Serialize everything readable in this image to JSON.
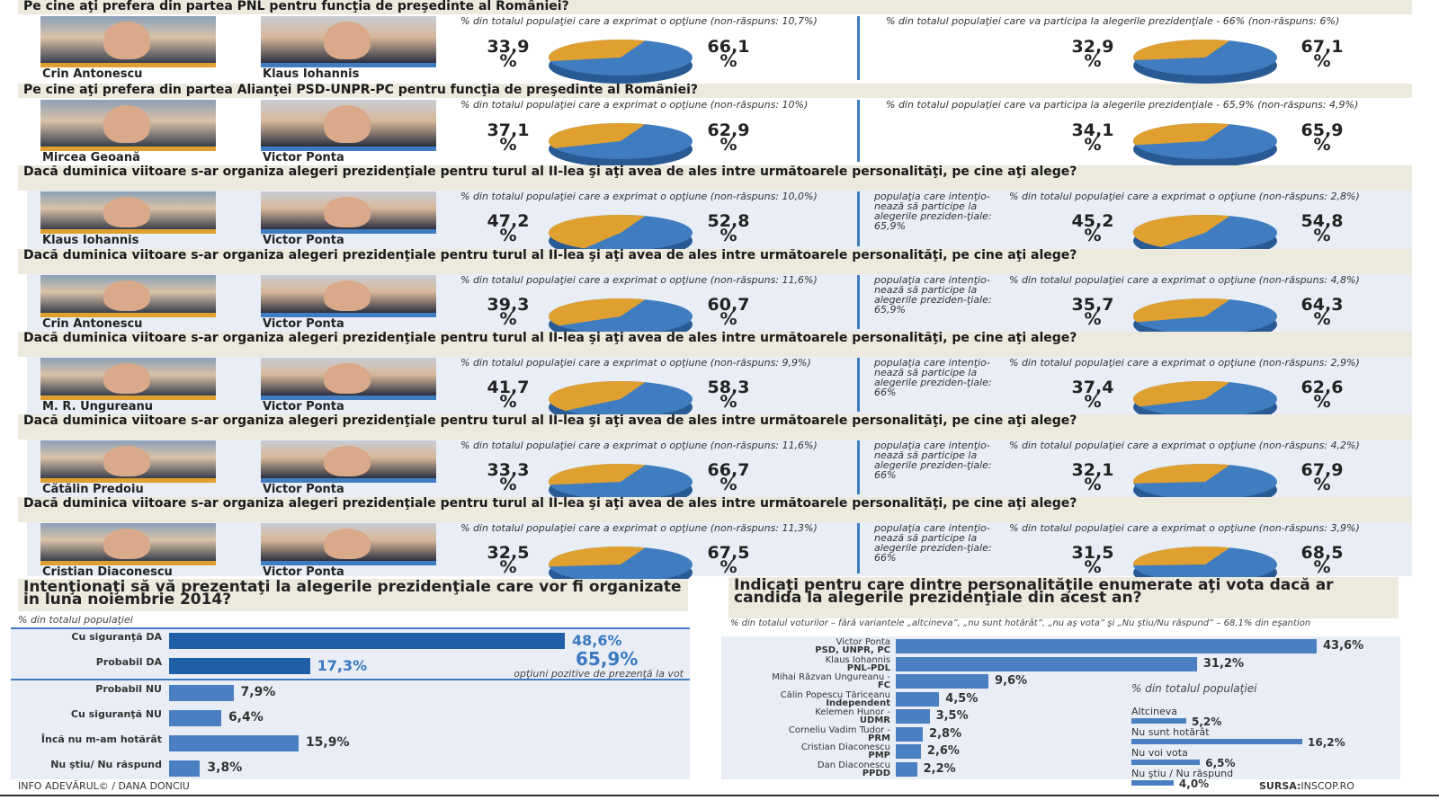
{
  "chart_data": [
    {
      "type": "pie",
      "title": "Pe cine aţi prefera din partea PNL pentru funcţia de preşedinte al României?",
      "candidates": [
        "Crin Antonescu",
        "Klaus Iohannis"
      ],
      "left": {
        "note": "% din totalul populaţiei care a exprimat o opţiune (non-răspuns: 10,7%)",
        "values": [
          33.9,
          66.1
        ]
      },
      "right": {
        "note": "% din totalul populaţiei care va participa la alegerile prezidenţiale - 66% (non-răspuns: 6%)",
        "values": [
          32.9,
          67.1
        ]
      }
    },
    {
      "type": "pie",
      "title": "Pe cine aţi prefera din partea Alianţei PSD-UNPR-PC pentru funcţia de preşedinte al României?",
      "candidates": [
        "Mircea Geoană",
        "Victor Ponta"
      ],
      "left": {
        "note": "% din totalul populaţiei care a exprimat o opţiune (non-răspuns: 10%)",
        "values": [
          37.1,
          62.9
        ]
      },
      "right": {
        "note": "% din totalul populaţiei care va participa la alegerile prezidenţiale - 65,9% (non-răspuns: 4,9%)",
        "values": [
          34.1,
          65.9
        ]
      }
    },
    {
      "type": "pie",
      "title": "Dacă duminica viitoare s-ar organiza alegeri prezidenţiale pentru turul al II-lea şi aţi avea de ales intre următoarele personalităţi, pe cine aţi alege?",
      "candidates": [
        "Klaus Iohannis",
        "Victor Ponta"
      ],
      "left": {
        "note": "% din totalul populaţiei care a exprimat o opţiune (non-răspuns: 10,0%)",
        "values": [
          47.2,
          52.8
        ]
      },
      "side": "populaţia care intenţio-nează să participe la alegerile preziden-ţiale: 65,9%",
      "right": {
        "note": "% din totalul populaţiei care a exprimat o opţiune (non-răspuns: 2,8%)",
        "values": [
          45.2,
          54.8
        ]
      }
    },
    {
      "type": "pie",
      "title": "Dacă duminica viitoare s-ar organiza alegeri prezidenţiale pentru turul al II-lea şi aţi avea de ales intre următoarele personalităţi, pe cine aţi alege?",
      "candidates": [
        "Crin Antonescu",
        "Victor Ponta"
      ],
      "left": {
        "note": "% din totalul populaţiei care a exprimat o opţiune (non-răspuns: 11,6%)",
        "values": [
          39.3,
          60.7
        ]
      },
      "side": "populaţia care intenţio-nează să participe la alegerile preziden-ţiale: 65,9%",
      "right": {
        "note": "% din totalul populaţiei care a exprimat o opţiune (non-răspuns: 4,8%)",
        "values": [
          35.7,
          64.3
        ]
      }
    },
    {
      "type": "pie",
      "title": "Dacă duminica viitoare s-ar organiza alegeri prezidenţiale pentru turul al II-lea şi aţi avea de ales intre următoarele personalităţi, pe cine aţi alege?",
      "candidates": [
        "M. R. Ungureanu",
        "Victor Ponta"
      ],
      "left": {
        "note": "% din totalul populaţiei care a exprimat o opţiune (non-răspuns: 9,9%)",
        "values": [
          41.7,
          58.3
        ]
      },
      "side": "populaţia care intenţio-nează să participe la alegerile preziden-ţiale: 66%",
      "right": {
        "note": "% din totalul populaţiei care a exprimat o opţiune (non-răspuns: 2,9%)",
        "values": [
          37.4,
          62.6
        ]
      }
    },
    {
      "type": "pie",
      "title": "Dacă duminica viitoare s-ar organiza alegeri prezidenţiale pentru turul al II-lea şi aţi avea de ales intre următoarele personalităţi, pe cine aţi alege?",
      "candidates": [
        "Cătălin Predoiu",
        "Victor Ponta"
      ],
      "left": {
        "note": "% din totalul populaţiei care a exprimat o opţiune (non-răspuns: 11,6%)",
        "values": [
          33.3,
          66.7
        ]
      },
      "side": "populaţia care intenţio-nează să participe la alegerile preziden-ţiale: 66%",
      "right": {
        "note": "% din totalul populaţiei care a exprimat o opţiune (non-răspuns: 4,2%)",
        "values": [
          32.1,
          67.9
        ]
      }
    },
    {
      "type": "pie",
      "title": "Dacă duminica viitoare s-ar organiza alegeri prezidenţiale pentru turul al II-lea şi aţi avea de ales intre următoarele personalităţi, pe cine aţi alege?",
      "candidates": [
        "Cristian Diaconescu",
        "Victor Ponta"
      ],
      "left": {
        "note": "% din totalul populaţiei care a exprimat o opţiune (non-răspuns: 11,3%)",
        "values": [
          32.5,
          67.5
        ]
      },
      "side": "populaţia care intenţio-nează să participe la alegerile preziden-ţiale: 66%",
      "right": {
        "note": "% din totalul populaţiei care a exprimat o opţiune (non-răspuns: 3,9%)",
        "values": [
          31.5,
          68.5
        ]
      }
    },
    {
      "type": "bar",
      "title": "Intenţionaţi să vă prezentaţi la alegerile prezidenţiale care vor fi organizate in luna noiembrie 2014?",
      "subtitle": "% din totalul populaţiei",
      "categories": [
        "Cu siguranţă DA",
        "Probabil DA",
        "Probabil NU",
        "Cu siguranţă NU",
        "Încă nu m-am hotărât",
        "Nu ştiu/ Nu răspund"
      ],
      "values": [
        48.6,
        17.3,
        7.9,
        6.4,
        15.9,
        3.8
      ],
      "labels": [
        "48,6%",
        "17,3%",
        "7,9%",
        "6,4%",
        "15,9%",
        "3,8%"
      ],
      "annotation": {
        "value": "65,9%",
        "text": "opţiuni pozitive de prezenţă la vot"
      }
    },
    {
      "type": "bar",
      "title": "Indicaţi pentru care dintre personalităţile enumerate aţi vota dacă ar candida la alegerile prezidenţiale din acest an?",
      "subtitle": "% din totalul voturilor – fără variantele „altcineva”, „nu sunt hotărât”, „nu aş vota” şi „Nu ştiu/Nu răspund” – 68,1% din eşantion",
      "categories": [
        [
          "Victor Ponta",
          "PSD, UNPR, PC"
        ],
        [
          "Klaus Iohannis",
          "PNL-PDL"
        ],
        [
          "Mihai Răzvan Ungureanu -",
          "FC"
        ],
        [
          "Călin Popescu Tăriceanu",
          "Independent"
        ],
        [
          "Kelemen Hunor -",
          "UDMR"
        ],
        [
          "Corneliu Vadim Tudor -",
          "PRM"
        ],
        [
          "Cristian Diaconescu",
          "PMP"
        ],
        [
          "Dan Diaconescu",
          "PPDD"
        ]
      ],
      "values": [
        43.6,
        31.2,
        9.6,
        4.5,
        3.5,
        2.8,
        2.6,
        2.2
      ],
      "labels": [
        "43,6%",
        "31,2%",
        "9,6%",
        "4,5%",
        "3,5%",
        "2,8%",
        "2,6%",
        "2,2%"
      ],
      "inset": {
        "subtitle": "% din totalul populaţiei",
        "categories": [
          "Altcineva",
          "Nu sunt hotărât",
          "Nu voi vota",
          "Nu ştiu / Nu răspund"
        ],
        "values": [
          5.2,
          16.2,
          6.5,
          4.0
        ],
        "labels": [
          "5,2%",
          "16,2%",
          "6,5%",
          "4,0%"
        ]
      }
    }
  ],
  "colors": {
    "candidate_a": "#e0a030",
    "candidate_b": "#3f7cc0",
    "bar": "#4a7fc1",
    "bar_dark": "#1f5fa8"
  },
  "footer": {
    "credit": "INFO ADEVĂRUL© / DANA DONCIU",
    "source_label": "SURSA:",
    "source": "INSCOP.RO"
  }
}
